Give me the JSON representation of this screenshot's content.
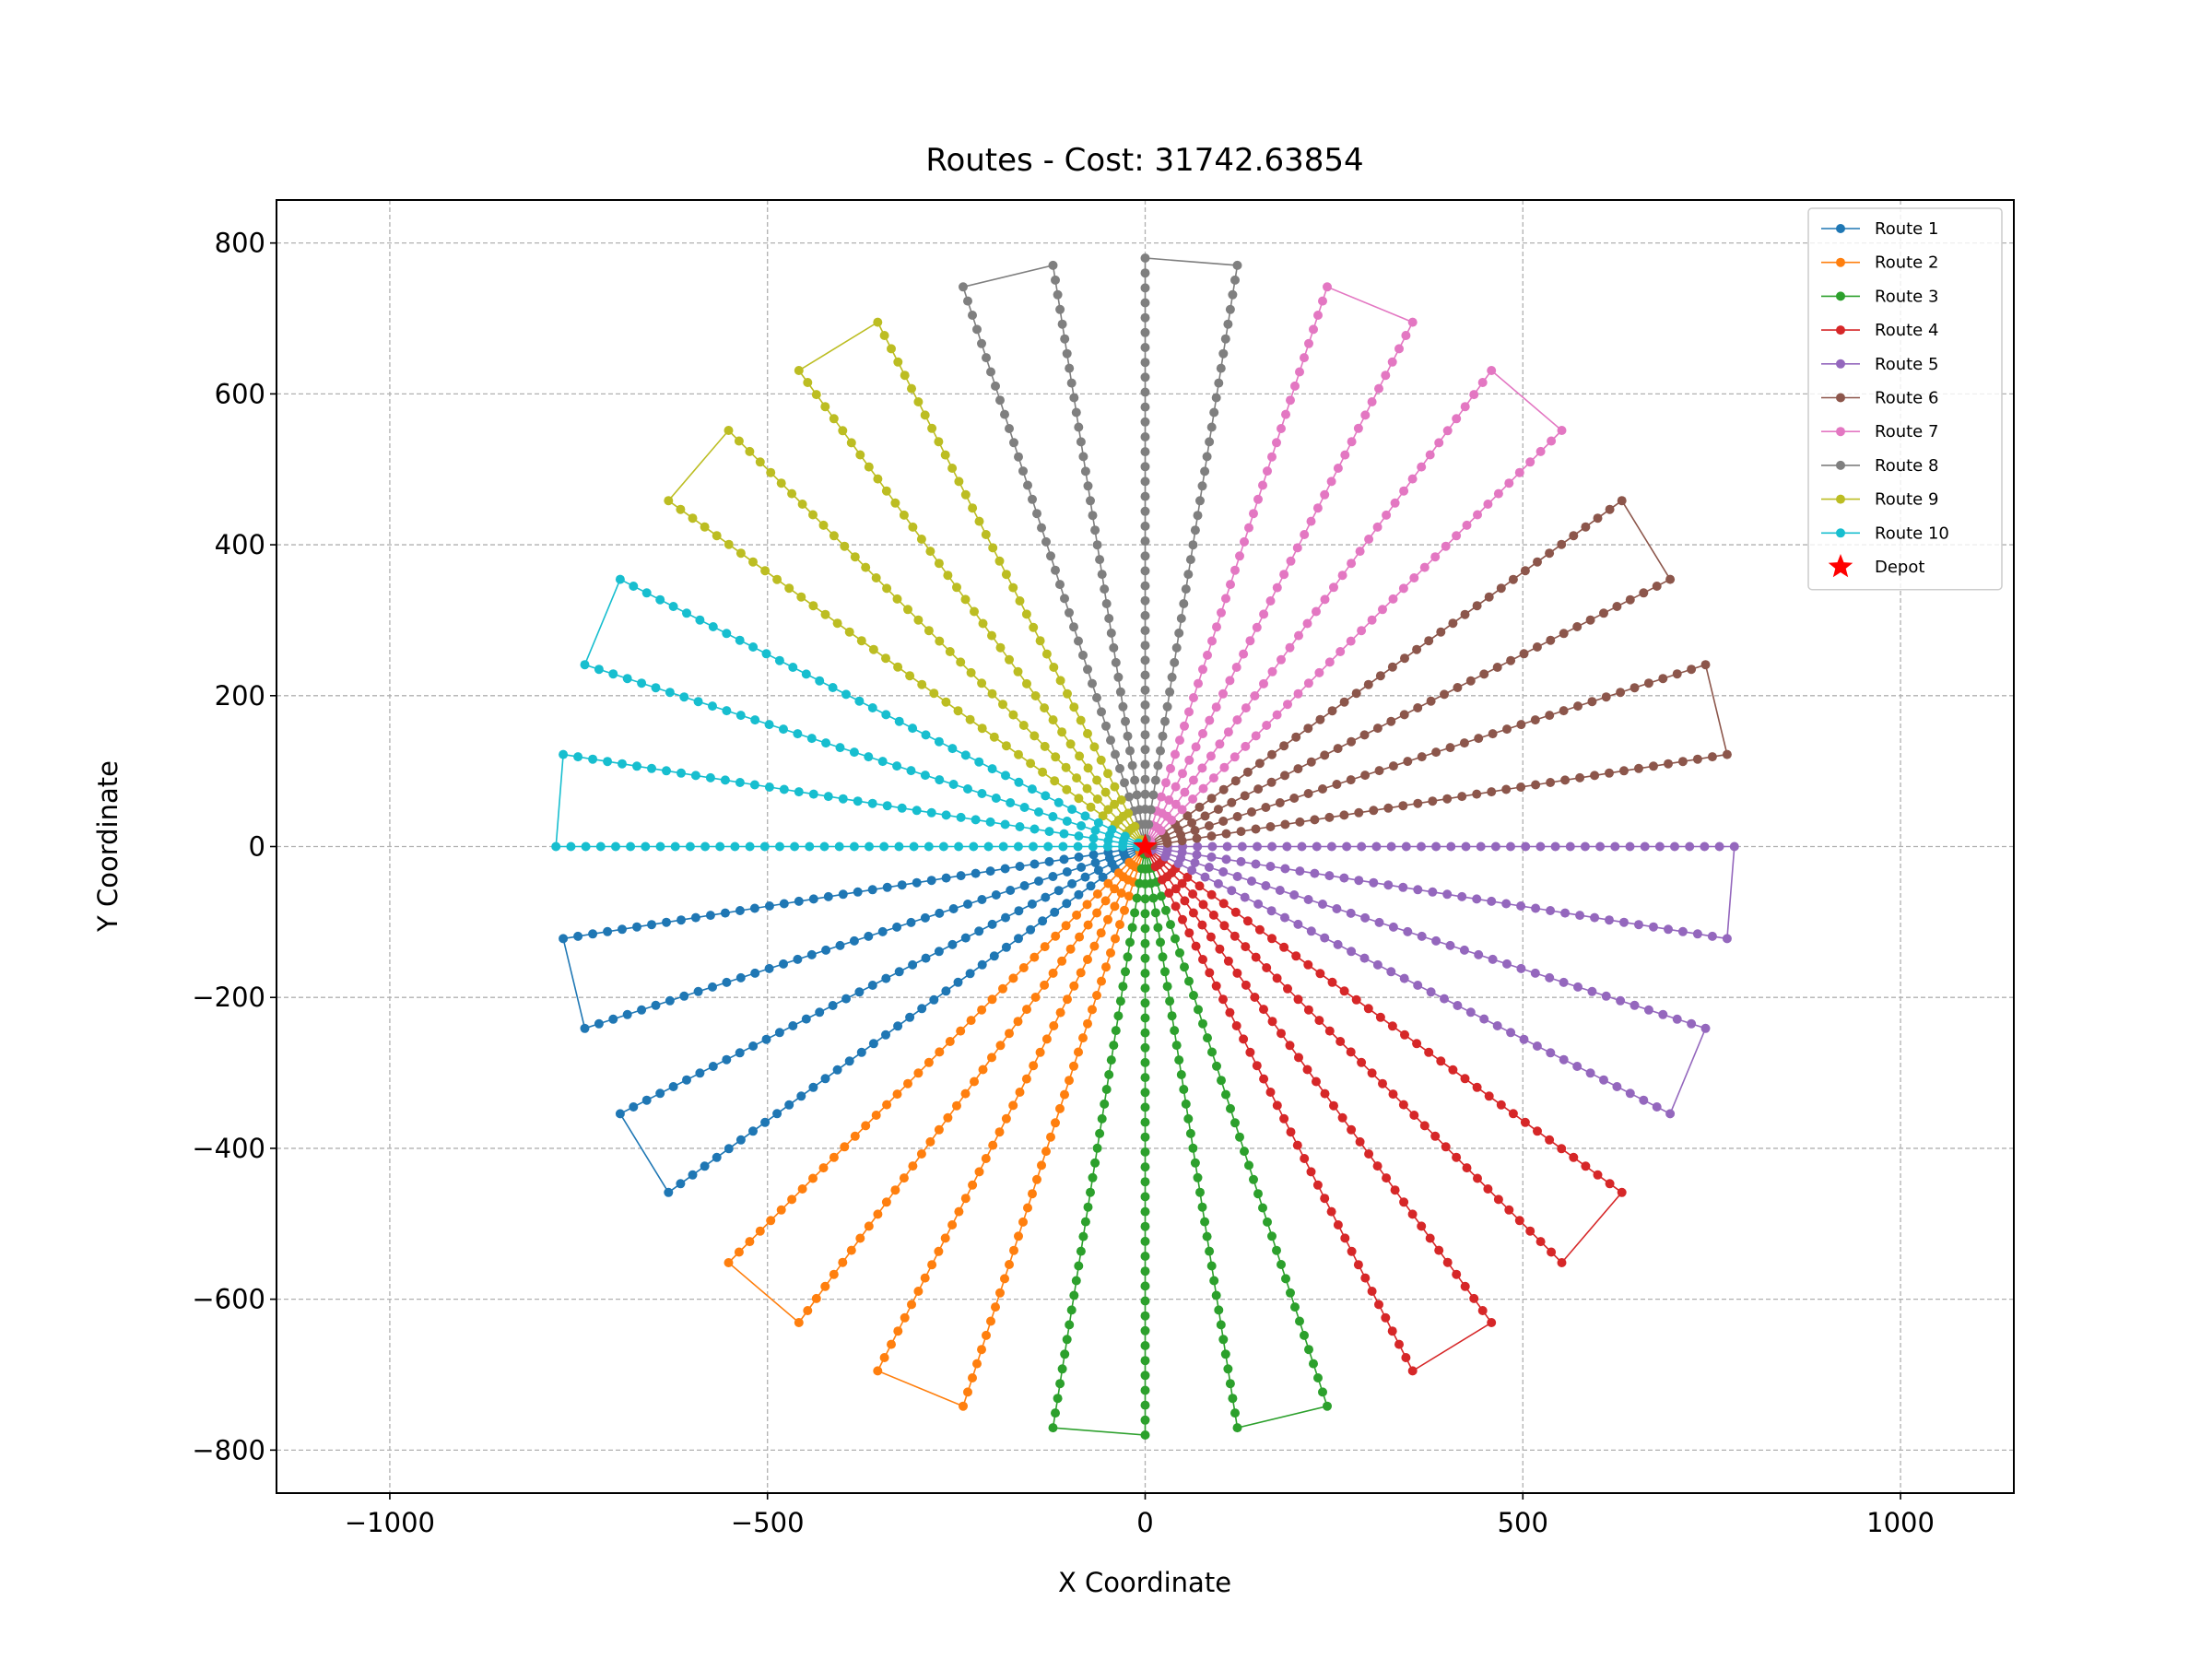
{
  "chart_data": {
    "type": "line",
    "title": "Routes - Cost: 31742.63854",
    "xlabel": "X Coordinate",
    "ylabel": "Y Coordinate",
    "xlim": [
      -1150,
      1150
    ],
    "ylim": [
      -857,
      857
    ],
    "xticks": [
      -1000,
      -500,
      0,
      500,
      1000
    ],
    "yticks": [
      -800,
      -600,
      -400,
      -200,
      0,
      200,
      400,
      600,
      800
    ],
    "xtick_labels": [
      "−1000",
      "−500",
      "0",
      "500",
      "1000"
    ],
    "ytick_labels": [
      "−800",
      "−600",
      "−400",
      "−200",
      "0",
      "200",
      "400",
      "600",
      "800"
    ],
    "grid": true,
    "legend_position": "upper right",
    "depot": {
      "name": "Depot",
      "x": 0,
      "y": 0,
      "color": "#ff0000"
    },
    "series": [
      {
        "name": "Route 1",
        "color": "#1f77b4",
        "start_angle_deg": 189,
        "spokes": 4
      },
      {
        "name": "Route 2",
        "color": "#ff7f0e",
        "start_angle_deg": 225,
        "spokes": 4
      },
      {
        "name": "Route 3",
        "color": "#2ca02c",
        "start_angle_deg": 261,
        "spokes": 4
      },
      {
        "name": "Route 4",
        "color": "#d62728",
        "start_angle_deg": 297,
        "spokes": 4
      },
      {
        "name": "Route 5",
        "color": "#9467bd",
        "start_angle_deg": 333,
        "spokes": 4
      },
      {
        "name": "Route 6",
        "color": "#8c564b",
        "start_angle_deg": 9,
        "spokes": 4
      },
      {
        "name": "Route 7",
        "color": "#e377c2",
        "start_angle_deg": 45,
        "spokes": 4
      },
      {
        "name": "Route 8",
        "color": "#7f7f7f",
        "start_angle_deg": 81,
        "spokes": 4
      },
      {
        "name": "Route 9",
        "color": "#bcbd22",
        "start_angle_deg": 117,
        "spokes": 4
      },
      {
        "name": "Route 10",
        "color": "#17becf",
        "start_angle_deg": 153,
        "spokes": 4
      }
    ],
    "node_radius_range": [
      10,
      780
    ],
    "spoke_step_deg": 9
  }
}
